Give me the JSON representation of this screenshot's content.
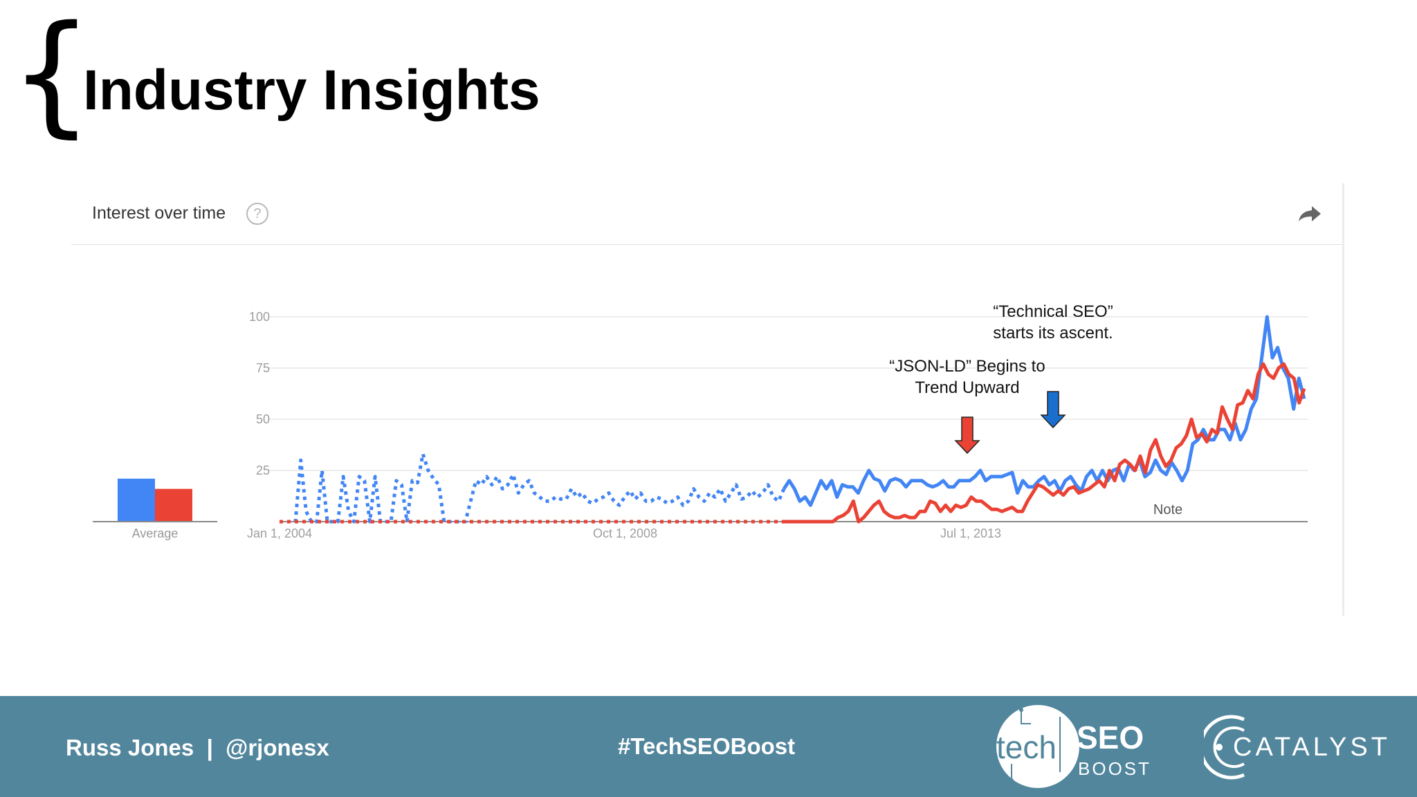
{
  "slide": {
    "brace": "{",
    "title": "Industry Insights"
  },
  "card": {
    "title": "Interest over time",
    "help_glyph": "?"
  },
  "chart_data": {
    "type": "line",
    "x_ticks": [
      "Jan 1, 2004",
      "Oct 1, 2008",
      "Jul 1, 2013"
    ],
    "y_ticks": [
      100,
      75,
      50,
      25
    ],
    "ylim": [
      0,
      100
    ],
    "x_range": [
      "2004-01",
      "2018-02"
    ],
    "grid": true,
    "series_colors": [
      "#4285f4",
      "#ea4335"
    ],
    "series": [
      {
        "values": [
          0,
          0,
          0,
          0,
          30,
          5,
          0,
          0,
          25,
          0,
          0,
          0,
          22,
          5,
          0,
          22,
          20,
          0,
          22,
          0,
          0,
          0,
          20,
          18,
          0,
          20,
          19,
          33,
          25,
          21,
          18,
          0,
          0,
          0,
          0,
          0,
          10,
          20,
          18,
          22,
          18,
          22,
          16,
          18,
          23,
          14,
          18,
          20,
          14,
          12,
          10,
          10,
          12,
          11,
          11,
          16,
          12,
          14,
          10,
          9,
          11,
          12,
          14,
          10,
          8,
          12,
          15,
          11,
          14,
          10,
          10,
          12,
          11,
          9,
          10,
          12,
          8,
          10,
          16,
          12,
          10,
          14,
          12,
          16,
          10,
          14,
          18,
          11,
          12,
          15,
          12,
          14,
          18,
          12,
          10,
          16,
          20,
          16,
          10,
          12,
          8,
          14,
          20,
          16,
          20,
          12,
          18,
          17,
          17,
          14,
          20,
          25,
          21,
          20,
          15,
          20,
          21,
          20,
          17,
          20,
          20,
          20,
          18,
          17,
          18,
          20,
          17,
          17,
          20,
          20,
          20,
          22,
          25,
          20,
          22,
          22,
          22,
          23,
          24,
          14,
          20,
          17,
          17,
          20,
          22,
          18,
          20,
          15,
          20,
          22,
          18,
          15,
          22,
          25,
          20,
          25,
          20,
          25,
          26,
          20,
          28,
          25,
          30,
          22,
          24,
          30,
          25,
          23,
          29,
          25,
          20,
          25,
          38,
          40,
          45,
          40,
          40,
          45,
          45,
          40,
          48,
          40,
          45,
          55,
          60,
          80,
          100,
          80,
          85,
          75,
          70,
          55,
          70,
          60
        ]
      },
      {
        "values": [
          0,
          0,
          0,
          0,
          0,
          0,
          0,
          0,
          0,
          0,
          0,
          0,
          0,
          0,
          0,
          0,
          0,
          0,
          0,
          0,
          0,
          0,
          0,
          0,
          0,
          0,
          0,
          0,
          0,
          0,
          0,
          0,
          0,
          0,
          0,
          0,
          0,
          0,
          0,
          0,
          0,
          0,
          0,
          0,
          0,
          0,
          0,
          0,
          0,
          0,
          0,
          0,
          0,
          0,
          0,
          0,
          0,
          0,
          0,
          0,
          0,
          0,
          0,
          0,
          0,
          0,
          0,
          0,
          0,
          0,
          0,
          0,
          0,
          0,
          0,
          0,
          0,
          0,
          0,
          0,
          0,
          0,
          0,
          0,
          0,
          0,
          0,
          0,
          0,
          0,
          0,
          0,
          0,
          0,
          0,
          0,
          0,
          0,
          0,
          0,
          0,
          0,
          0,
          0,
          0,
          0,
          0,
          0,
          0,
          2,
          3,
          5,
          10,
          0,
          2,
          5,
          8,
          10,
          5,
          3,
          2,
          2,
          3,
          2,
          2,
          5,
          5,
          10,
          9,
          5,
          8,
          5,
          8,
          7,
          8,
          12,
          10,
          10,
          8,
          6,
          6,
          5,
          6,
          7,
          5,
          5,
          10,
          14,
          18,
          17,
          15,
          13,
          15,
          13,
          16,
          17,
          14,
          15,
          16,
          18,
          20,
          17,
          25,
          20,
          28,
          30,
          28,
          25,
          32,
          24,
          35,
          40,
          32,
          27,
          30,
          36,
          38,
          42,
          50,
          41,
          43,
          39,
          45,
          43,
          56,
          50,
          45,
          57,
          58,
          64,
          60,
          72,
          77,
          72,
          70,
          75,
          77,
          72,
          70,
          58,
          65
        ]
      }
    ],
    "annotations": [
      {
        "text": "“Technical SEO” starts its ascent.",
        "line1": "“Technical SEO”",
        "line2": "starts its ascent.",
        "arrow_color": "#1a6fce"
      },
      {
        "text": "“JSON-LD” Begins to Trend Upward",
        "line1": "“JSON-LD” Begins to",
        "line2": "Trend Upward",
        "arrow_color": "#ea4335"
      }
    ],
    "note_label": "Note",
    "average": {
      "label": "Average",
      "values": [
        21,
        16
      ]
    }
  },
  "footer": {
    "author": "Russ Jones  |  @rjonesx",
    "hashtag": "#TechSEOBoost",
    "logo_tech": "tech",
    "logo_seo": "SEO",
    "logo_boost": "BOOST",
    "logo_catalyst": "CATALYST"
  },
  "icons": {
    "help": "help-circle-icon",
    "share": "share-arrow-icon"
  },
  "colors": {
    "footer_bg": "#52869c",
    "blue_series": "#4285f4",
    "red_series": "#ea4335"
  }
}
